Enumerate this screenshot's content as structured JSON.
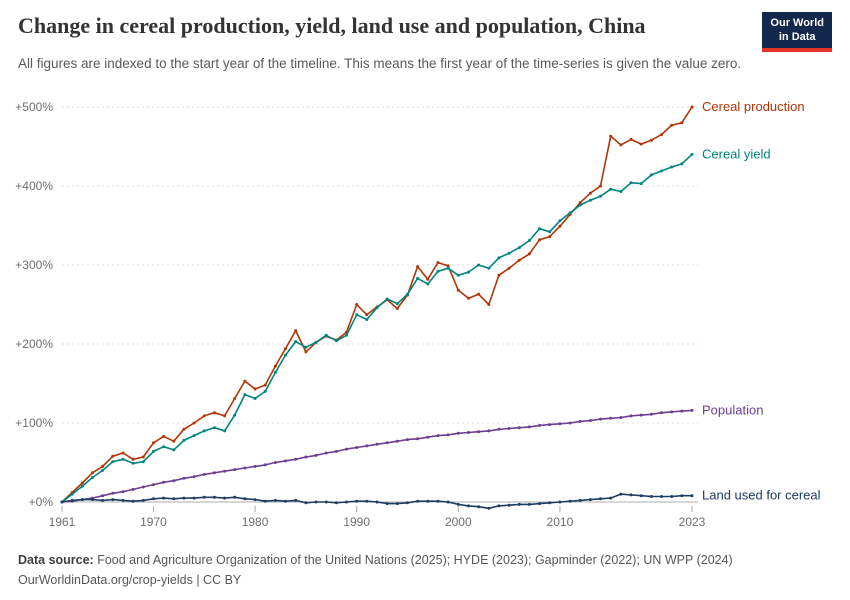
{
  "header": {
    "title": "Change in cereal production, yield, land use and population, China",
    "subtitle": "All figures are indexed to the start year of the timeline. This means the first year of the time-series is given the value zero.",
    "logo": {
      "line1": "Our World",
      "line2": "in Data",
      "navy": "#12294d",
      "red": "#e5332a"
    }
  },
  "chart_data": {
    "type": "line",
    "title": "Change in cereal production, yield, land use and population, China",
    "grid": "horizontal-dashed",
    "legend_position": "right-end-labels",
    "x_range": [
      1961,
      2023
    ],
    "ylim": [
      -10,
      500
    ],
    "yticks": [
      0,
      100,
      200,
      300,
      400,
      500
    ],
    "y_tick_labels": [
      "+0%",
      "+100%",
      "+200%",
      "+300%",
      "+400%",
      "+500%"
    ],
    "xticks": [
      1961,
      1970,
      1980,
      1990,
      2000,
      2010,
      2023
    ],
    "years": [
      1961,
      1962,
      1963,
      1964,
      1965,
      1966,
      1967,
      1968,
      1969,
      1970,
      1971,
      1972,
      1973,
      1974,
      1975,
      1976,
      1977,
      1978,
      1979,
      1980,
      1981,
      1982,
      1983,
      1984,
      1985,
      1986,
      1987,
      1988,
      1989,
      1990,
      1991,
      1992,
      1993,
      1994,
      1995,
      1996,
      1997,
      1998,
      1999,
      2000,
      2001,
      2002,
      2003,
      2004,
      2005,
      2006,
      2007,
      2008,
      2009,
      2010,
      2011,
      2012,
      2013,
      2014,
      2015,
      2016,
      2017,
      2018,
      2019,
      2020,
      2021,
      2022,
      2023
    ],
    "series": [
      {
        "name": "Cereal production",
        "color": "#B13507",
        "values": [
          0,
          12,
          24,
          37,
          45,
          58,
          62,
          54,
          57,
          75,
          83,
          77,
          92,
          100,
          109,
          113,
          109,
          131,
          153,
          143,
          148,
          172,
          194,
          217,
          190,
          202,
          210,
          205,
          215,
          250,
          237,
          247,
          256,
          245,
          262,
          298,
          282,
          303,
          299,
          268,
          258,
          263,
          250,
          287,
          296,
          306,
          314,
          332,
          336,
          349,
          364,
          379,
          391,
          400,
          463,
          452,
          459,
          453,
          458,
          465,
          477,
          480,
          500
        ]
      },
      {
        "name": "Cereal yield",
        "color": "#00847E",
        "values": [
          0,
          10,
          20,
          31,
          40,
          51,
          54,
          49,
          51,
          64,
          70,
          66,
          78,
          84,
          90,
          94,
          90,
          110,
          136,
          131,
          140,
          164,
          186,
          203,
          196,
          202,
          211,
          204,
          211,
          237,
          231,
          246,
          257,
          251,
          263,
          283,
          276,
          292,
          296,
          287,
          291,
          300,
          296,
          309,
          315,
          322,
          331,
          346,
          342,
          356,
          366,
          376,
          382,
          387,
          396,
          393,
          404,
          403,
          414,
          419,
          424,
          428,
          440
        ]
      },
      {
        "name": "Population",
        "color": "#6D3E91",
        "values": [
          0,
          1,
          3,
          5,
          8,
          11,
          13,
          16,
          19,
          22,
          25,
          27,
          30,
          32,
          35,
          37,
          39,
          41,
          43,
          45,
          47,
          50,
          52,
          54,
          57,
          59,
          62,
          64,
          67,
          69,
          71,
          73,
          75,
          77,
          79,
          80,
          82,
          84,
          85,
          87,
          88,
          89,
          90,
          92,
          93,
          94,
          95,
          97,
          98,
          99,
          100,
          102,
          103,
          105,
          106,
          107,
          109,
          110,
          111,
          113,
          114,
          115,
          116
        ]
      },
      {
        "name": "Land used for cereal",
        "color": "#1D3D63",
        "values": [
          0,
          2,
          3,
          3,
          2,
          3,
          2,
          1,
          2,
          4,
          5,
          4,
          5,
          5,
          6,
          6,
          5,
          6,
          4,
          3,
          1,
          2,
          1,
          2,
          -1,
          0,
          0,
          -1,
          0,
          1,
          1,
          0,
          -2,
          -2,
          -1,
          1,
          1,
          1,
          0,
          -3,
          -5,
          -6,
          -8,
          -5,
          -4,
          -3,
          -3,
          -2,
          -1,
          0,
          1,
          2,
          3,
          4,
          5,
          10,
          9,
          8,
          7,
          7,
          7,
          8,
          8
        ]
      }
    ]
  },
  "footer": {
    "source_label": "Data source:",
    "sources": "Food and Agriculture Organization of the United Nations (2025); HYDE (2023); Gapminder (2022); UN WPP (2024)",
    "url": "OurWorldinData.org/crop-yields",
    "separator": " | ",
    "license": "CC BY"
  }
}
